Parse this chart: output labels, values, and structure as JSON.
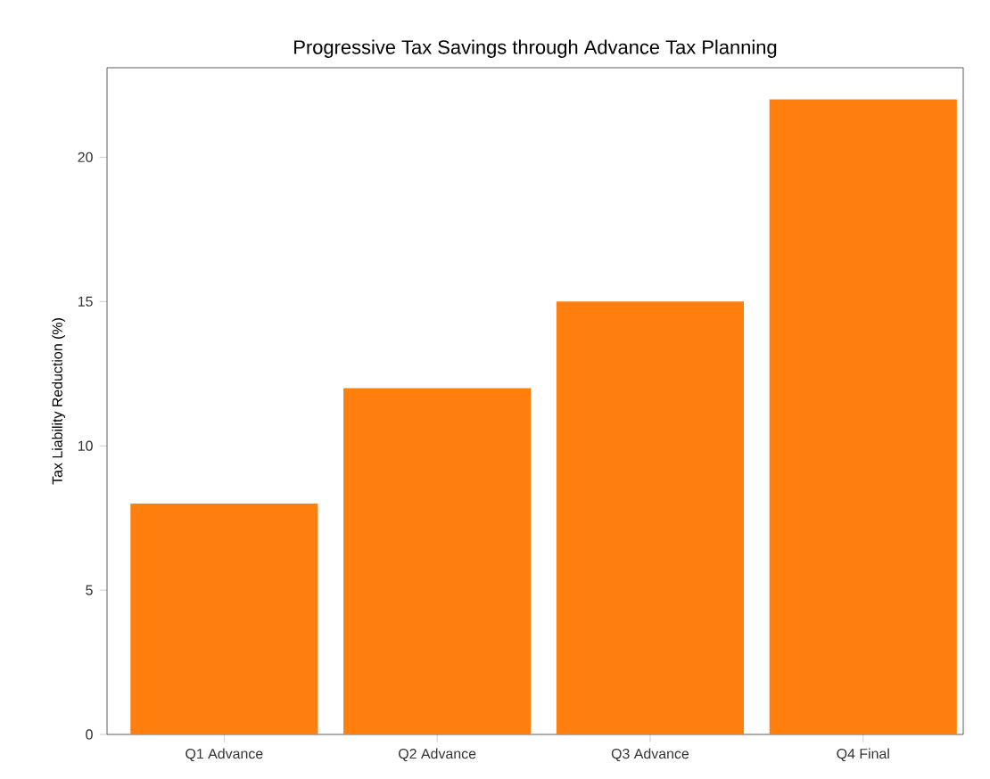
{
  "chart_data": {
    "type": "bar",
    "title": "Progressive Tax Savings through Advance Tax Planning",
    "ylabel": "Tax Liability Reduction (%)",
    "categories": [
      "Q1 Advance",
      "Q2 Advance",
      "Q3 Advance",
      "Q4 Final"
    ],
    "values": [
      8,
      12,
      15,
      22
    ],
    "color": "#ff7f0e",
    "ylim": [
      0,
      23.1
    ],
    "yticks": [
      0,
      5,
      10,
      15,
      20
    ]
  }
}
